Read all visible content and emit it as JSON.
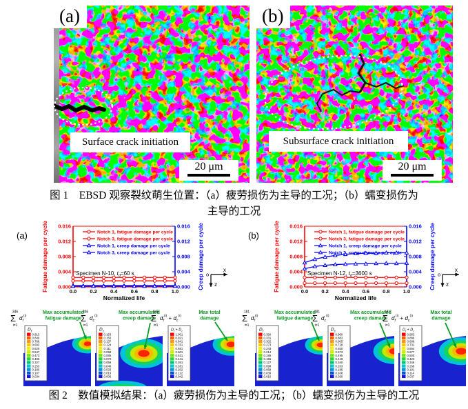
{
  "page": {
    "background": "#ffffff"
  },
  "figure1": {
    "panels": [
      {
        "label": "(a)",
        "annotation": "Surface crack initiation",
        "scale_bar": "20 μm"
      },
      {
        "label": "(b)",
        "annotation": "Subsurface crack initiation",
        "scale_bar": "20 μm"
      }
    ],
    "caption_line1": "图 1　EBSD 观察裂纹萌生位置：（a）疲劳损伤为主导的工况；（b）蠕变损伤为",
    "caption_line2": "主导的工况"
  },
  "figure2": {
    "caption": "图 2　数值模拟结果：（a）疲劳损伤为主导的工况；（b）蠕变损伤为主导的工况"
  },
  "chart_data": [
    {
      "type": "line",
      "panel": "(a)",
      "xlabel": "Normalized life",
      "ylabel_left": "Fatigue damage per cycle",
      "ylabel_right": "Creep damage per cycle",
      "xlim": [
        0,
        1.0
      ],
      "ylim": [
        0,
        0.016
      ],
      "xtick_labels": [
        "0.0",
        "0.2",
        "0.4",
        "0.6",
        "0.8",
        "1.0"
      ],
      "ytick_labels": [
        "0.000",
        "0.004",
        "0.008",
        "0.012",
        "0.016"
      ],
      "axis_color_left": "#ff0000",
      "axis_color_right": "#0000ff",
      "annotation": {
        "pre": "Specimen N-10, ",
        "var": "t",
        "sub": "d",
        "post": "=60 s"
      },
      "axes_icon": {
        "o": "o",
        "x": "x",
        "z": "z"
      },
      "x": [
        0,
        0.1,
        0.2,
        0.3,
        0.4,
        0.5,
        0.6,
        0.7,
        0.8,
        0.9,
        1.0
      ],
      "series": [
        {
          "name": "Notch 1, fatigue damage per cycle",
          "color": "#ff0000",
          "marker": "circle",
          "y": [
            0.0025,
            0.0025,
            0.0025,
            0.0025,
            0.0025,
            0.0025,
            0.0025,
            0.0025,
            0.0025,
            0.0025,
            0.0025
          ]
        },
        {
          "name": "Notch 3, fatigue damage per cycle",
          "color": "#ff0000",
          "marker": "circle",
          "y": [
            0.0016,
            0.0016,
            0.0016,
            0.0016,
            0.0016,
            0.0016,
            0.0016,
            0.0016,
            0.0016,
            0.0016,
            0.0016
          ]
        },
        {
          "name": "Notch 1, creep damage per cycle",
          "color": "#0000ff",
          "marker": "triangle",
          "y": [
            0.00035,
            0.00035,
            0.00035,
            0.00035,
            0.00035,
            0.00035,
            0.00035,
            0.00035,
            0.00035,
            0.00035,
            0.00035
          ]
        },
        {
          "name": "Notch 3, creep damage per cycle",
          "color": "#0000ff",
          "marker": "triangle",
          "y": [
            0.0002,
            0.0002,
            0.0002,
            0.0002,
            0.0002,
            0.0002,
            0.0002,
            0.0002,
            0.0002,
            0.0002,
            0.0002
          ]
        }
      ]
    },
    {
      "type": "line",
      "panel": "(b)",
      "xlabel": "Normalized life",
      "ylabel_left": "Fatigue damage per cycle",
      "ylabel_right": "Creep damage per cycle",
      "xlim": [
        0,
        1.0
      ],
      "ylim": [
        0,
        0.016
      ],
      "xtick_labels": [
        "0.0",
        "0.2",
        "0.4",
        "0.6",
        "0.8",
        "1.0"
      ],
      "ytick_labels": [
        "0.000",
        "0.004",
        "0.008",
        "0.012",
        "0.016"
      ],
      "axis_color_left": "#ff0000",
      "axis_color_right": "#0000ff",
      "annotation": {
        "pre": "Specimen N-12, ",
        "var": "t",
        "sub": "d",
        "post": "=3600 s"
      },
      "axes_icon": {
        "o": "o",
        "x": "x",
        "z": "z"
      },
      "x": [
        0,
        0.1,
        0.2,
        0.3,
        0.4,
        0.5,
        0.6,
        0.7,
        0.8,
        0.9,
        1.0
      ],
      "series": [
        {
          "name": "Notch 1, fatigue damage per cycle",
          "color": "#ff0000",
          "marker": "circle",
          "y": [
            0.0025,
            0.0025,
            0.0025,
            0.0025,
            0.0025,
            0.0025,
            0.0025,
            0.0025,
            0.0025,
            0.0025,
            0.0025
          ]
        },
        {
          "name": "Notch 3, fatigue damage per cycle",
          "color": "#ff0000",
          "marker": "circle",
          "y": [
            0.001,
            0.001,
            0.001,
            0.001,
            0.001,
            0.001,
            0.001,
            0.001,
            0.001,
            0.001,
            0.001
          ]
        },
        {
          "name": "Notch 1, creep damage per cycle",
          "color": "#0000ff",
          "marker": "triangle",
          "y": [
            0.0048,
            0.0054,
            0.0057,
            0.0059,
            0.006,
            0.0061,
            0.0061,
            0.0062,
            0.0062,
            0.0062,
            0.0063
          ]
        },
        {
          "name": "Notch 3, creep damage per cycle",
          "color": "#0000ff",
          "marker": "triangle",
          "y": [
            0.0064,
            0.0073,
            0.0079,
            0.0083,
            0.0086,
            0.0088,
            0.0089,
            0.0089,
            0.009,
            0.009,
            0.009
          ]
        }
      ]
    }
  ],
  "contours": {
    "annotation_color": "#0b9a22",
    "field_color": "#1822cf",
    "colorbar_colors": [
      "#ff0000",
      "#ff5a00",
      "#ff9600",
      "#ffc800",
      "#fff000",
      "#c8f000",
      "#78e600",
      "#1edc32",
      "#00c878",
      "#00c8c8",
      "#0096dc",
      "#0050e6",
      "#1414dc"
    ],
    "sides": [
      {
        "panel": "(a)",
        "panels": [
          {
            "sum_upper": "346",
            "sum_lower": "i=1",
            "term": "d_f^(i)",
            "legend_title": "D_f",
            "annotation_lines": [
              "Max accumulated",
              "fatigue damage"
            ],
            "colorbar_values": [
              "0.913",
              "0.840",
              "0.766",
              "0.693",
              "0.620",
              "0.547",
              "0.473",
              "0.400",
              "0.327",
              "0.253",
              "0.180",
              "0.107",
              "0.034"
            ]
          },
          {
            "sum_upper": "346",
            "sum_lower": "i=1",
            "term": "d_c^(i)",
            "legend_title": "D_c",
            "annotation_lines": [
              "Max accumulated",
              "creep damage"
            ],
            "colorbar_values": [
              "0.163",
              "0.150",
              "0.137",
              "0.124",
              "0.111",
              "0.098",
              "0.085",
              "0.072",
              "0.059",
              "0.046",
              "0.033",
              "0.019",
              "0.006"
            ]
          },
          {
            "sum_upper": "346",
            "sum_lower": "i=1",
            "term": "d_f^(i) + d_c^(i)",
            "legend_title": "D_f + D_c",
            "annotation_lines": [
              "Max total",
              "damage"
            ],
            "colorbar_values": [
              "1.001",
              "0.921",
              "0.841",
              "0.761",
              "0.681",
              "0.601",
              "0.521",
              "0.441",
              "0.361",
              "0.281",
              "0.202",
              "0.122",
              "0.042"
            ]
          }
        ]
      },
      {
        "panel": "(b)",
        "panels": [
          {
            "sum_upper": "181",
            "sum_lower": "i=1",
            "term": "d_f^(i)",
            "legend_title": "D_f",
            "annotation_lines": [
              "Max accumulated",
              "fatigue damage"
            ],
            "colorbar_values": [
              "0.360",
              "0.331",
              "0.302",
              "0.273",
              "0.243",
              "0.214",
              "0.185",
              "0.156",
              "0.127",
              "0.098",
              "0.068",
              "0.039",
              "0.010"
            ]
          },
          {
            "sum_upper": "181",
            "sum_lower": "i=1",
            "term": "d_c^(i)",
            "legend_title": "D_c",
            "annotation_lines": [
              "Max accumulated",
              "creep damage"
            ],
            "colorbar_values": [
              "0.960",
              "0.883",
              "0.805",
              "0.728",
              "0.650",
              "0.573",
              "0.495",
              "0.418",
              "0.340",
              "0.263",
              "0.185",
              "0.108",
              "0.030"
            ]
          },
          {
            "sum_upper": "181",
            "sum_lower": "i=1",
            "term": "d_f^(i) + d_c^(i)",
            "legend_title": "D_f + D_c",
            "annotation_lines": [
              "Max total",
              "damage"
            ],
            "colorbar_values": [
              "0.963",
              "0.886",
              "0.809",
              "0.731",
              "0.654",
              "0.577",
              "0.500",
              "0.423",
              "0.346",
              "0.269",
              "0.191",
              "0.114",
              "0.037"
            ]
          }
        ]
      }
    ]
  }
}
